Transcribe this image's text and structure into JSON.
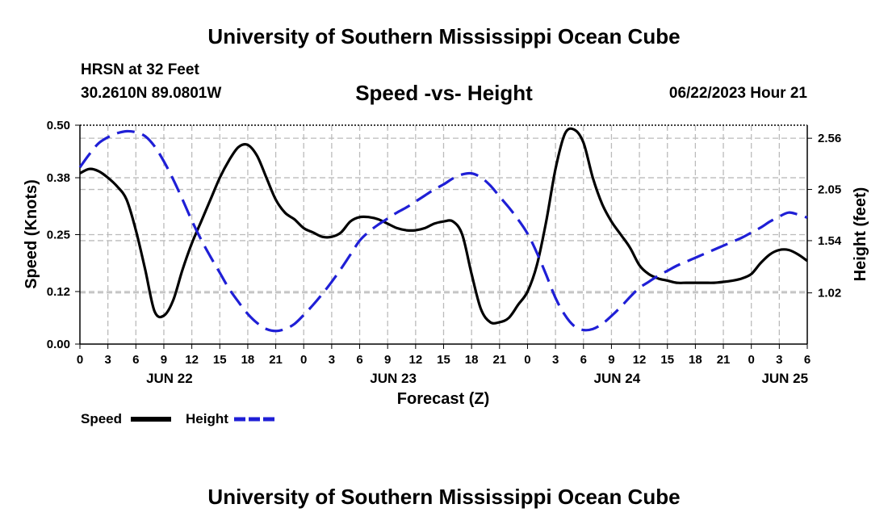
{
  "header": {
    "title": "University of Southern Mississippi Ocean Cube",
    "station": "HRSN at 32 Feet",
    "coords": "30.2610N  89.0801W",
    "timestamp": "06/22/2023 Hour 21"
  },
  "footer": {
    "title": "University of Southern Mississippi Ocean Cube"
  },
  "legend": {
    "speed_label": "Speed",
    "height_label": "Height"
  },
  "colors": {
    "speed": "#000000",
    "height": "#1f1fd6",
    "grid": "#bbbbbb"
  },
  "chart_data": {
    "type": "line",
    "title": "Speed -vs- Height",
    "xlabel": "Forecast (Z)",
    "ylabel": "Speed (Knots)",
    "y2label": "Height (feet)",
    "x_range_hours": [
      0,
      78
    ],
    "x_tick_step_hours": 3,
    "x_tick_labels": [
      "0",
      "3",
      "6",
      "9",
      "12",
      "15",
      "18",
      "21",
      "0",
      "3",
      "6",
      "9",
      "12",
      "15",
      "18",
      "21",
      "0",
      "3",
      "6",
      "9",
      "12",
      "15",
      "18",
      "21",
      "0",
      "3",
      "6"
    ],
    "day_labels": [
      {
        "label": "JUN 22",
        "hour": 9.6
      },
      {
        "label": "JUN 23",
        "hour": 33.6
      },
      {
        "label": "JUN 24",
        "hour": 57.6
      },
      {
        "label": "JUN 25",
        "hour": 75.6
      }
    ],
    "ylim": [
      0,
      0.5
    ],
    "y_ticks": [
      "0.00",
      "0.12",
      "0.25",
      "0.38",
      "0.50"
    ],
    "y2lim": [
      0.51,
      2.69
    ],
    "y2_ticks": [
      "1.02",
      "1.54",
      "2.05",
      "2.56"
    ],
    "series": [
      {
        "name": "Speed",
        "axis": "left",
        "style": "solid",
        "x": [
          0,
          1,
          2,
          3,
          4,
          5,
          6,
          7,
          8,
          9,
          10,
          11,
          12,
          13,
          14,
          15,
          16,
          17,
          18,
          19,
          20,
          21,
          22,
          23,
          24,
          25,
          26,
          27,
          28,
          29,
          30,
          31,
          32,
          33,
          34,
          35,
          36,
          37,
          38,
          39,
          40,
          41,
          42,
          43,
          44,
          45,
          46,
          47,
          48,
          49,
          50,
          51,
          52,
          53,
          54,
          55,
          56,
          57,
          58,
          59,
          60,
          61,
          62,
          63,
          64,
          65,
          66,
          67,
          68,
          69,
          70,
          71,
          72,
          73,
          74,
          75,
          76,
          77,
          78
        ],
        "values": [
          0.39,
          0.4,
          0.395,
          0.38,
          0.36,
          0.33,
          0.26,
          0.17,
          0.075,
          0.065,
          0.1,
          0.17,
          0.23,
          0.28,
          0.33,
          0.38,
          0.42,
          0.45,
          0.455,
          0.43,
          0.38,
          0.33,
          0.3,
          0.285,
          0.265,
          0.255,
          0.245,
          0.245,
          0.255,
          0.28,
          0.29,
          0.29,
          0.285,
          0.275,
          0.265,
          0.26,
          0.26,
          0.265,
          0.275,
          0.28,
          0.28,
          0.25,
          0.16,
          0.08,
          0.05,
          0.05,
          0.06,
          0.09,
          0.12,
          0.18,
          0.28,
          0.4,
          0.48,
          0.49,
          0.46,
          0.38,
          0.32,
          0.28,
          0.25,
          0.22,
          0.18,
          0.16,
          0.15,
          0.145,
          0.14,
          0.14,
          0.14,
          0.14,
          0.14,
          0.142,
          0.145,
          0.15,
          0.16,
          0.185,
          0.205,
          0.215,
          0.215,
          0.205,
          0.19
        ]
      },
      {
        "name": "Height",
        "axis": "right",
        "style": "dashed",
        "x": [
          0,
          1,
          2,
          3,
          4,
          5,
          6,
          7,
          8,
          9,
          10,
          11,
          12,
          13,
          14,
          15,
          16,
          17,
          18,
          19,
          20,
          21,
          22,
          23,
          24,
          25,
          26,
          27,
          28,
          29,
          30,
          31,
          32,
          33,
          34,
          35,
          36,
          37,
          38,
          39,
          40,
          41,
          42,
          43,
          44,
          45,
          46,
          47,
          48,
          49,
          50,
          51,
          52,
          53,
          54,
          55,
          56,
          57,
          58,
          59,
          60,
          61,
          62,
          63,
          64,
          65,
          66,
          67,
          68,
          69,
          70,
          71,
          72,
          73,
          74,
          75,
          76,
          77,
          78
        ],
        "values": [
          2.27,
          2.4,
          2.51,
          2.57,
          2.61,
          2.63,
          2.62,
          2.58,
          2.48,
          2.33,
          2.15,
          1.95,
          1.74,
          1.55,
          1.38,
          1.22,
          1.06,
          0.93,
          0.81,
          0.72,
          0.66,
          0.64,
          0.66,
          0.71,
          0.8,
          0.9,
          1.01,
          1.13,
          1.26,
          1.4,
          1.54,
          1.63,
          1.7,
          1.76,
          1.82,
          1.87,
          1.93,
          1.99,
          2.05,
          2.1,
          2.16,
          2.2,
          2.21,
          2.17,
          2.09,
          1.98,
          1.87,
          1.75,
          1.61,
          1.42,
          1.2,
          0.97,
          0.8,
          0.69,
          0.65,
          0.66,
          0.71,
          0.79,
          0.88,
          0.98,
          1.07,
          1.13,
          1.19,
          1.24,
          1.29,
          1.33,
          1.37,
          1.41,
          1.45,
          1.49,
          1.53,
          1.57,
          1.62,
          1.67,
          1.73,
          1.78,
          1.82,
          1.8,
          1.77
        ]
      }
    ]
  }
}
